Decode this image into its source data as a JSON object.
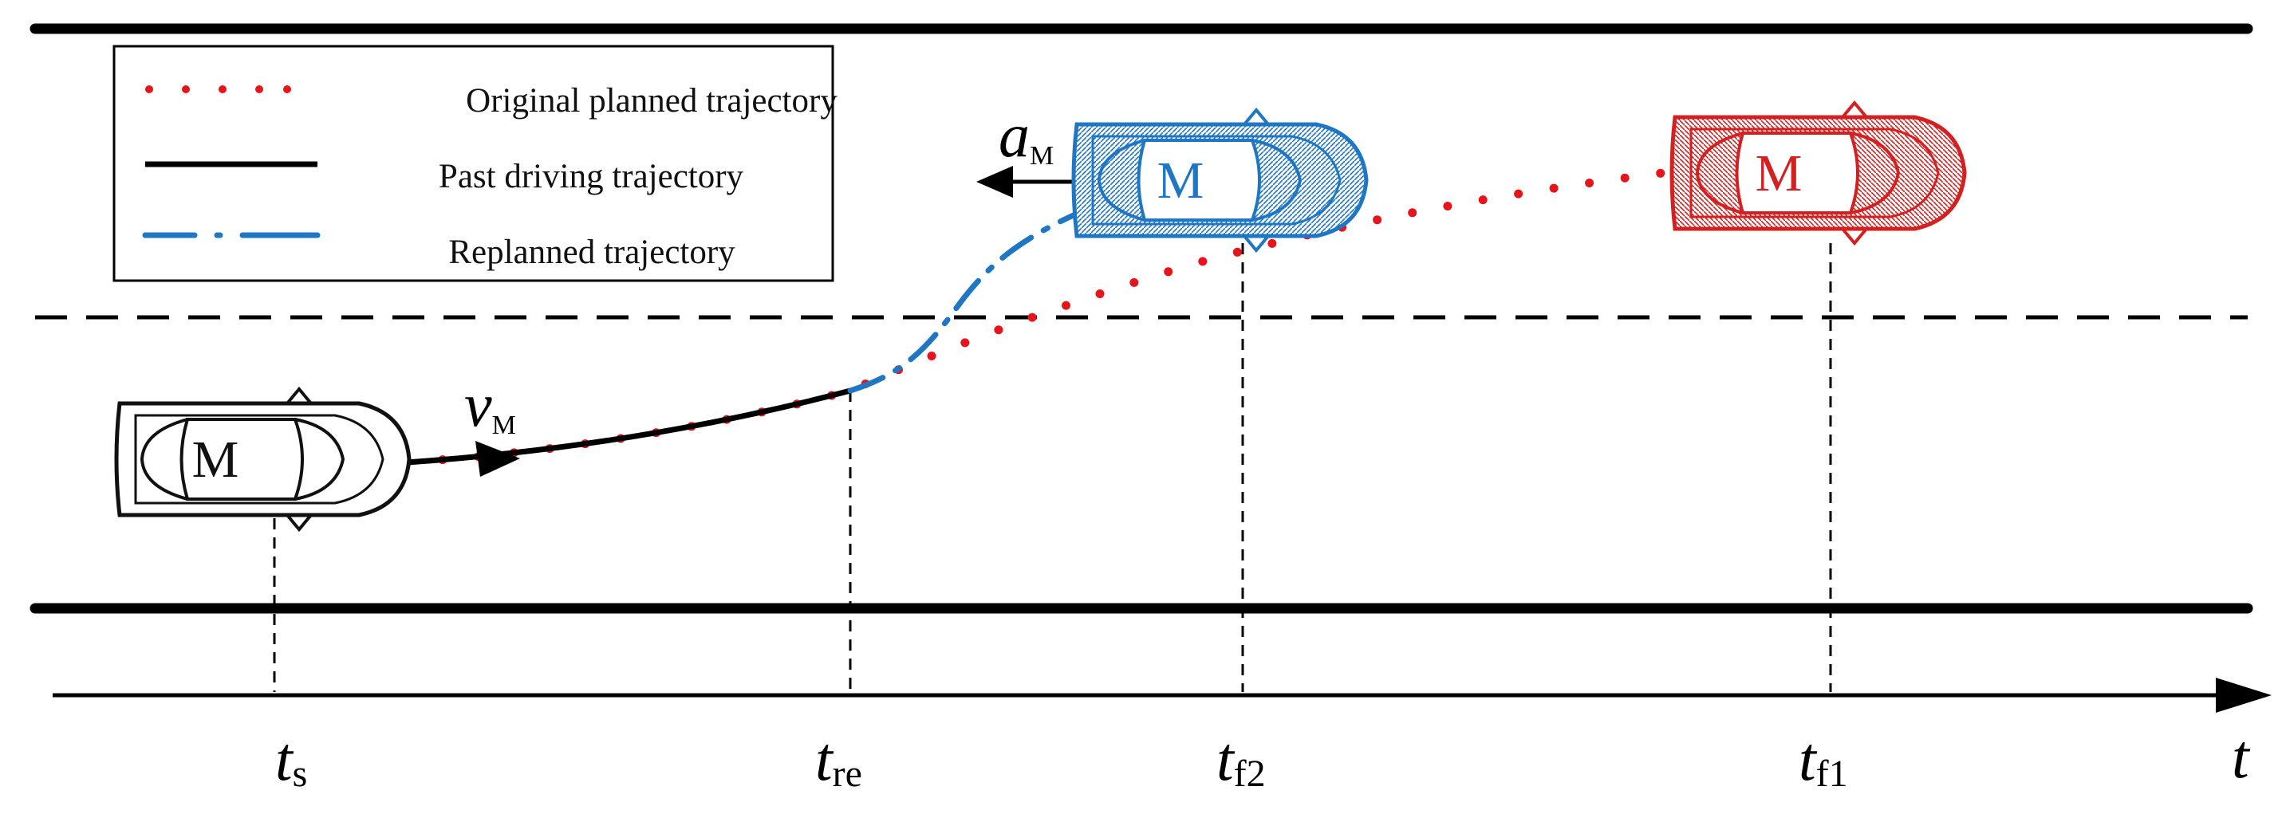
{
  "legend": {
    "items": [
      {
        "label": "Original planned trajectory",
        "style": "dotted",
        "color": "#e8141b"
      },
      {
        "label": "Past driving trajectory",
        "style": "solid",
        "color": "#000000"
      },
      {
        "label": "Replanned trajectory",
        "style": "dash-dot",
        "color": "#1f77c4"
      }
    ]
  },
  "cars": [
    {
      "label": "M",
      "color": "#111111",
      "state": "start"
    },
    {
      "label": "M",
      "color": "#1f77c4",
      "state": "replanned"
    },
    {
      "label": "M",
      "color": "#d32020",
      "state": "original"
    }
  ],
  "annotations": {
    "velocity": {
      "symbol": "v",
      "sub": "M"
    },
    "acceleration": {
      "symbol": "a",
      "sub": "M"
    }
  },
  "time_axis": {
    "symbol": "t",
    "ticks": [
      {
        "symbol": "t",
        "sub": "s"
      },
      {
        "symbol": "t",
        "sub": "re"
      },
      {
        "symbol": "t",
        "sub": "f2"
      },
      {
        "symbol": "t",
        "sub": "f1"
      }
    ]
  },
  "colors": {
    "red": "#e8141b",
    "blue": "#1f77c4",
    "black": "#000000"
  }
}
